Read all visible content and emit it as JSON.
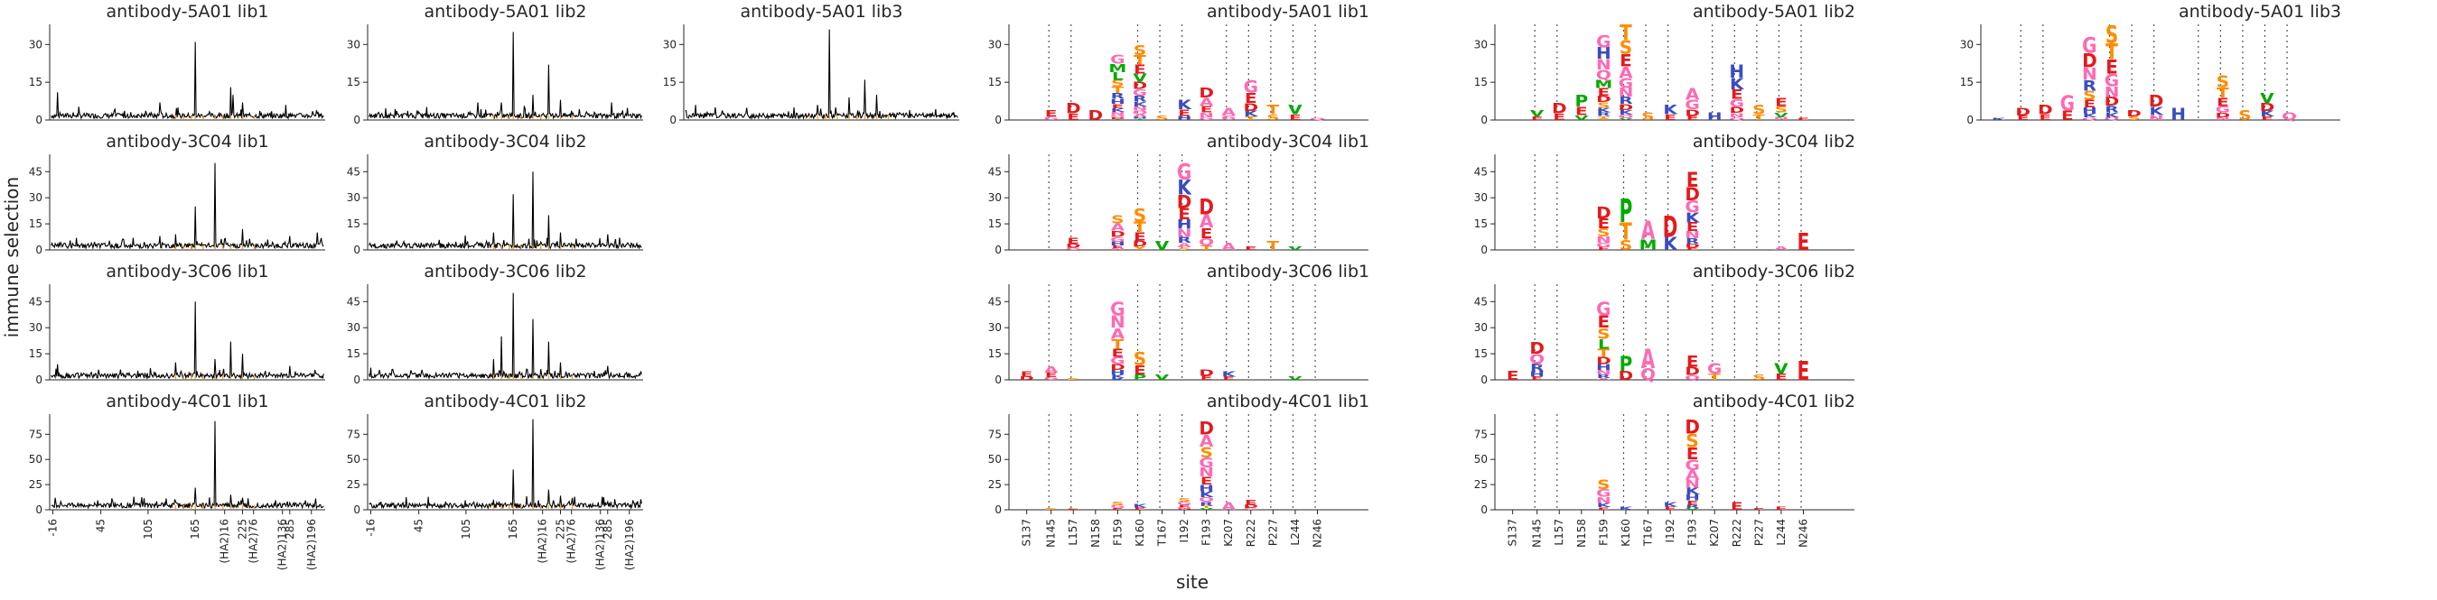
{
  "figure": {
    "ylabel": "immune selection",
    "xlabel": "site"
  },
  "colors": {
    "line": "#000000",
    "highlight": "#f5a623",
    "axis": "#262626",
    "vline": "#555555",
    "aa": {
      "A": "#ff69b4",
      "C": "#ffa500",
      "D": "#e41a1c",
      "E": "#e41a1c",
      "F": "#00aa00",
      "G": "#ff69b4",
      "H": "#3b4cc0",
      "I": "#00aa00",
      "K": "#3b4cc0",
      "L": "#00aa00",
      "M": "#00aa00",
      "N": "#ff69b4",
      "P": "#00aa00",
      "Q": "#ff69b4",
      "R": "#3b4cc0",
      "S": "#ff8c00",
      "T": "#ff8c00",
      "V": "#00aa00",
      "W": "#00aa00",
      "Y": "#ff8c00"
    }
  },
  "line_xticks": [
    "-16",
    "45",
    "105",
    "165",
    "225",
    "285",
    "(HA2)16",
    "(HA2)76",
    "(HA2)136",
    "(HA2)196"
  ],
  "logo_sites": [
    "S137",
    "N145",
    "L157",
    "N158",
    "F159",
    "K160",
    "T167",
    "I192",
    "F193",
    "K207",
    "R222",
    "P227",
    "L244",
    "N246"
  ],
  "rows": [
    {
      "antibody": "5A01",
      "ylim": [
        0,
        38
      ],
      "yticks": [
        "0",
        "15",
        "30"
      ],
      "line_panels": [
        {
          "title": "antibody-5A01 lib1",
          "peaks": [
            [
              165,
              31
            ],
            [
              210,
              13
            ],
            [
              213,
              10
            ],
            [
              -10,
              11
            ],
            [
              120,
              7
            ],
            [
              225,
              7
            ],
            [
              280,
              6
            ]
          ]
        },
        {
          "title": "antibody-5A01 lib2",
          "peaks": [
            [
              165,
              35
            ],
            [
              210,
              22
            ],
            [
              190,
              10
            ],
            [
              225,
              8
            ],
            [
              120,
              7
            ],
            [
              150,
              7
            ],
            [
              290,
              7
            ]
          ]
        },
        {
          "title": "antibody-5A01 lib3",
          "peaks": [
            [
              165,
              36
            ],
            [
              210,
              16
            ],
            [
              190,
              9
            ],
            [
              225,
              10
            ],
            [
              150,
              6
            ],
            [
              120,
              5
            ],
            [
              -5,
              6
            ]
          ]
        }
      ],
      "logo_panels": [
        {
          "title": "antibody-5A01 lib1",
          "stacks": [
            {
              "site": "N145",
              "letters": "EG",
              "height": 4
            },
            {
              "site": "L157",
              "letters": "DE",
              "height": 7
            },
            {
              "site": "N158",
              "letters": "D",
              "height": 4
            },
            {
              "site": "F159",
              "letters": "GMLSTRHEKNQDI",
              "height": 26
            },
            {
              "site": "K160",
              "letters": "STEVDGRKNQAHI",
              "height": 30
            },
            {
              "site": "T167",
              "letters": "S",
              "height": 2
            },
            {
              "site": "I192",
              "letters": "KEH",
              "height": 8
            },
            {
              "site": "F193",
              "letters": "DAENG",
              "height": 13
            },
            {
              "site": "K207",
              "letters": "AG",
              "height": 5
            },
            {
              "site": "R222",
              "letters": "GEDKT",
              "height": 16
            },
            {
              "site": "P227",
              "letters": "TS",
              "height": 6
            },
            {
              "site": "L244",
              "letters": "VE",
              "height": 6
            },
            {
              "site": "N246",
              "letters": "Q",
              "height": 1
            }
          ]
        },
        {
          "title": "antibody-5A01 lib2",
          "stacks": [
            {
              "site": "N145",
              "letters": "VE",
              "height": 4
            },
            {
              "site": "N158",
              "letters": "PEV",
              "height": 10
            },
            {
              "site": "L157",
              "letters": "DE",
              "height": 7
            },
            {
              "site": "F159",
              "letters": "GHNQMEDSKRTY",
              "height": 34
            },
            {
              "site": "K160",
              "letters": "TSEAGNRDKQV",
              "height": 38
            },
            {
              "site": "T167",
              "letters": "S",
              "height": 3
            },
            {
              "site": "I192",
              "letters": "KE",
              "height": 6
            },
            {
              "site": "F193",
              "letters": "AGDE",
              "height": 13
            },
            {
              "site": "K207",
              "letters": "H",
              "height": 3
            },
            {
              "site": "R222",
              "letters": "HKEGDNQ",
              "height": 22
            },
            {
              "site": "P227",
              "letters": "ST",
              "height": 6
            },
            {
              "site": "L244",
              "letters": "ESVN",
              "height": 9
            },
            {
              "site": "N246",
              "letters": "E",
              "height": 1
            }
          ]
        },
        {
          "title": "antibody-5A01 lib3",
          "stacks": [
            {
              "site": "S137",
              "letters": "K",
              "height": 1
            },
            {
              "site": "N145",
              "letters": "DE",
              "height": 5
            },
            {
              "site": "L157",
              "letters": "DE",
              "height": 6
            },
            {
              "site": "N158",
              "letters": "GE",
              "height": 10
            },
            {
              "site": "F159",
              "letters": "GDNRSEHKQ",
              "height": 33
            },
            {
              "site": "K160",
              "letters": "STEGNDRKQ",
              "height": 38
            },
            {
              "site": "T167",
              "letters": "DS",
              "height": 4
            },
            {
              "site": "I192",
              "letters": "DKN",
              "height": 10
            },
            {
              "site": "F193",
              "letters": "H",
              "height": 5
            },
            {
              "site": "R222",
              "letters": "STEGDN",
              "height": 18
            },
            {
              "site": "P227",
              "letters": "S",
              "height": 4
            },
            {
              "site": "L244",
              "letters": "VDKE",
              "height": 11
            },
            {
              "site": "N246",
              "letters": "Q",
              "height": 3
            }
          ]
        }
      ]
    },
    {
      "antibody": "3C04",
      "ylim": [
        0,
        55
      ],
      "yticks": [
        "0",
        "15",
        "30",
        "45"
      ],
      "line_panels": [
        {
          "title": "antibody-3C04 lib1",
          "peaks": [
            [
              165,
              25
            ],
            [
              190,
              50
            ],
            [
              225,
              12
            ],
            [
              285,
              8
            ],
            [
              120,
              8
            ],
            [
              140,
              9
            ],
            [
              320,
              10
            ]
          ]
        },
        {
          "title": "antibody-3C04 lib2",
          "peaks": [
            [
              165,
              32
            ],
            [
              190,
              45
            ],
            [
              210,
              20
            ],
            [
              140,
              10
            ],
            [
              225,
              10
            ],
            [
              285,
              9
            ],
            [
              300,
              7
            ]
          ]
        }
      ],
      "logo_panels": [
        {
          "title": "antibody-3C04 lib1",
          "stacks": [
            {
              "site": "L157",
              "letters": "EDG",
              "height": 7
            },
            {
              "site": "F159",
              "letters": "SADGHEN",
              "height": 20
            },
            {
              "site": "K160",
              "letters": "STEDY",
              "height": 24
            },
            {
              "site": "T167",
              "letters": "V",
              "height": 5
            },
            {
              "site": "I192",
              "letters": "GKDEHNRAS",
              "height": 50
            },
            {
              "site": "F193",
              "letters": "DAEQT",
              "height": 30
            },
            {
              "site": "K207",
              "letters": "A",
              "height": 4
            },
            {
              "site": "R222",
              "letters": "E",
              "height": 2
            },
            {
              "site": "P227",
              "letters": "T",
              "height": 5
            },
            {
              "site": "L244",
              "letters": "V",
              "height": 2
            }
          ]
        },
        {
          "title": "antibody-3C04 lib2",
          "stacks": [
            {
              "site": "F159",
              "letters": "DESNGE",
              "height": 25
            },
            {
              "site": "K160",
              "letters": "PTS",
              "height": 30
            },
            {
              "site": "T167",
              "letters": "AM",
              "height": 17
            },
            {
              "site": "F193",
              "letters": "EDGKENRDE",
              "height": 45
            },
            {
              "site": "I192",
              "letters": "DK",
              "height": 20
            },
            {
              "site": "L244",
              "letters": "A",
              "height": 2
            },
            {
              "site": "N246",
              "letters": "E",
              "height": 10
            }
          ]
        }
      ]
    },
    {
      "antibody": "3C06",
      "ylim": [
        0,
        55
      ],
      "yticks": [
        "0",
        "15",
        "30",
        "45"
      ],
      "line_panels": [
        {
          "title": "antibody-3C06 lib1",
          "peaks": [
            [
              165,
              45
            ],
            [
              190,
              12
            ],
            [
              210,
              22
            ],
            [
              225,
              15
            ],
            [
              140,
              10
            ],
            [
              285,
              8
            ],
            [
              -10,
              9
            ]
          ]
        },
        {
          "title": "antibody-3C06 lib2",
          "peaks": [
            [
              165,
              50
            ],
            [
              150,
              25
            ],
            [
              190,
              35
            ],
            [
              210,
              22
            ],
            [
              140,
              12
            ],
            [
              225,
              10
            ],
            [
              285,
              8
            ]
          ]
        }
      ],
      "logo_panels": [
        {
          "title": "antibody-3C06 lib1",
          "stacks": [
            {
              "site": "S137",
              "letters": "ED",
              "height": 5
            },
            {
              "site": "N145",
              "letters": "AEG",
              "height": 8
            },
            {
              "site": "L157",
              "letters": "S",
              "height": 1
            },
            {
              "site": "F159",
              "letters": "GNATEGDHKR",
              "height": 45
            },
            {
              "site": "K160",
              "letters": "SEP",
              "height": 16
            },
            {
              "site": "T167",
              "letters": "V",
              "height": 3
            },
            {
              "site": "F193",
              "letters": "DE",
              "height": 6
            },
            {
              "site": "K207",
              "letters": "KE",
              "height": 5
            },
            {
              "site": "L244",
              "letters": "V",
              "height": 2
            }
          ]
        },
        {
          "title": "antibody-3C06 lib2",
          "stacks": [
            {
              "site": "S137",
              "letters": "E",
              "height": 5
            },
            {
              "site": "N145",
              "letters": "DQRHE",
              "height": 22
            },
            {
              "site": "F159",
              "letters": "GESLTDHNRA",
              "height": 45
            },
            {
              "site": "K160",
              "letters": "PD",
              "height": 14
            },
            {
              "site": "T167",
              "letters": "AQ",
              "height": 18
            },
            {
              "site": "F193",
              "letters": "EDQ",
              "height": 14
            },
            {
              "site": "K207",
              "letters": "GT",
              "height": 10
            },
            {
              "site": "P227",
              "letters": "S",
              "height": 3
            },
            {
              "site": "L244",
              "letters": "VE",
              "height": 10
            },
            {
              "site": "N246",
              "letters": "E",
              "height": 11
            }
          ]
        }
      ]
    },
    {
      "antibody": "4C01",
      "ylim": [
        0,
        95
      ],
      "yticks": [
        "0",
        "25",
        "50",
        "75"
      ],
      "line_panels": [
        {
          "title": "antibody-4C01 lib1",
          "peaks": [
            [
              190,
              88
            ],
            [
              165,
              22
            ],
            [
              210,
              15
            ],
            [
              225,
              12
            ],
            [
              140,
              8
            ],
            [
              285,
              7
            ],
            [
              -5,
              6
            ]
          ]
        },
        {
          "title": "antibody-4C01 lib2",
          "peaks": [
            [
              190,
              90
            ],
            [
              165,
              40
            ],
            [
              210,
              20
            ],
            [
              225,
              14
            ],
            [
              140,
              10
            ],
            [
              285,
              8
            ],
            [
              300,
              6
            ]
          ]
        }
      ],
      "logo_panels": [
        {
          "title": "antibody-4C01 lib1",
          "stacks": [
            {
              "site": "N145",
              "letters": "S",
              "height": 2
            },
            {
              "site": "L157",
              "letters": "E",
              "height": 1
            },
            {
              "site": "F159",
              "letters": "SGE",
              "height": 8
            },
            {
              "site": "K160",
              "letters": "KE",
              "height": 6
            },
            {
              "site": "I192",
              "letters": "SGEND",
              "height": 12
            },
            {
              "site": "F193",
              "letters": "DASGNEHKQRTV",
              "height": 88
            },
            {
              "site": "K207",
              "letters": "A",
              "height": 8
            },
            {
              "site": "R222",
              "letters": "EDG",
              "height": 10
            }
          ]
        },
        {
          "title": "antibody-4C01 lib2",
          "stacks": [
            {
              "site": "F159",
              "letters": "SGNKE",
              "height": 30
            },
            {
              "site": "K160",
              "letters": "K",
              "height": 3
            },
            {
              "site": "I192",
              "letters": "KE",
              "height": 8
            },
            {
              "site": "F193",
              "letters": "DSEGANKHERV",
              "height": 90
            },
            {
              "site": "R222",
              "letters": "E",
              "height": 8
            },
            {
              "site": "P227",
              "letters": "E",
              "height": 2
            },
            {
              "site": "L244",
              "letters": "E",
              "height": 3
            }
          ]
        }
      ]
    }
  ]
}
